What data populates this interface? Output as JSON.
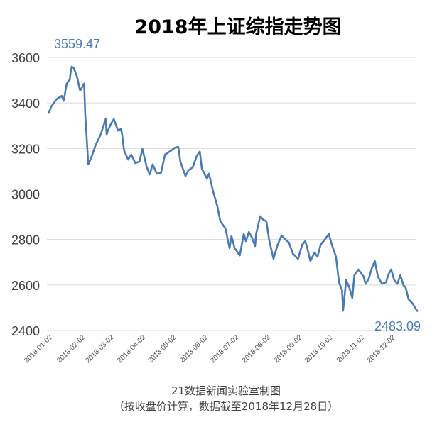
{
  "chart_data": {
    "type": "line",
    "title": "2018年上证综指走势图",
    "xlabel": "",
    "ylabel": "",
    "ylim": [
      2400,
      3600
    ],
    "yticks": [
      2400,
      2600,
      2800,
      3000,
      3200,
      3400,
      3600
    ],
    "grid": true,
    "x_unit": "day of year 2018",
    "xlim": [
      1,
      362
    ],
    "xticks": [
      {
        "day": 1,
        "label": "2018-01-02"
      },
      {
        "day": 33,
        "label": "2018-02-02"
      },
      {
        "day": 61,
        "label": "2018-03-02"
      },
      {
        "day": 92,
        "label": "2018-04-02"
      },
      {
        "day": 122,
        "label": "2018-05-02"
      },
      {
        "day": 153,
        "label": "2018-06-02"
      },
      {
        "day": 183,
        "label": "2018-07-02"
      },
      {
        "day": 214,
        "label": "2018-08-02"
      },
      {
        "day": 245,
        "label": "2018-09-02"
      },
      {
        "day": 275,
        "label": "2018-10-02"
      },
      {
        "day": 306,
        "label": "2018-11-02"
      },
      {
        "day": 336,
        "label": "2018-12-02"
      }
    ],
    "series": [
      {
        "name": "上证综指",
        "color": "#4a7ab5",
        "x": [
          1,
          4,
          9,
          14,
          16,
          19,
          22,
          23,
          24,
          26,
          29,
          32,
          36,
          37,
          40,
          43,
          47,
          52,
          57,
          58,
          59,
          62,
          65,
          69,
          72,
          73,
          75,
          79,
          82,
          86,
          90,
          93,
          97,
          100,
          103,
          107,
          111,
          115,
          121,
          125,
          128,
          130,
          135,
          138,
          142,
          146,
          149,
          151,
          156,
          158,
          162,
          166,
          169,
          174,
          178,
          180,
          183,
          188,
          192,
          194,
          197,
          200,
          203,
          204,
          208,
          211,
          214,
          217,
          221,
          225,
          229,
          232,
          236,
          240,
          245,
          249,
          252,
          254,
          257,
          261,
          264,
          267,
          271,
          275,
          278,
          282,
          285,
          288,
          289,
          292,
          295,
          298,
          300,
          304,
          309,
          311,
          314,
          317,
          320,
          323,
          327,
          331,
          333,
          336,
          339,
          342,
          345,
          348,
          350,
          353,
          357,
          360,
          362
        ],
        "values": [
          3353,
          3385,
          3416,
          3431,
          3410,
          3485,
          3503,
          3541,
          3559.47,
          3553,
          3516,
          3454,
          3485,
          3353,
          3130,
          3160,
          3213,
          3260,
          3329,
          3260,
          3276,
          3307,
          3329,
          3279,
          3285,
          3266,
          3191,
          3151,
          3173,
          3136,
          3142,
          3198,
          3120,
          3086,
          3130,
          3089,
          3092,
          3173,
          3191,
          3204,
          3207,
          3142,
          3079,
          3104,
          3117,
          3167,
          3186,
          3111,
          3067,
          3089,
          3011,
          2949,
          2880,
          2849,
          2762,
          2815,
          2762,
          2730,
          2824,
          2793,
          2833,
          2808,
          2771,
          2824,
          2902,
          2887,
          2880,
          2793,
          2715,
          2777,
          2818,
          2802,
          2787,
          2737,
          2715,
          2777,
          2793,
          2762,
          2705,
          2743,
          2724,
          2777,
          2799,
          2824,
          2777,
          2724,
          2612,
          2576,
          2487,
          2621,
          2590,
          2543,
          2643,
          2668,
          2637,
          2605,
          2627,
          2674,
          2705,
          2637,
          2605,
          2612,
          2643,
          2668,
          2621,
          2605,
          2643,
          2599,
          2590,
          2537,
          2518,
          2495,
          2483.09
        ]
      }
    ],
    "annotations": {
      "max_label": "3559.47",
      "last_label": "2483.09"
    }
  },
  "footer": {
    "source": "21数据新闻实验室制图",
    "note": "（按收盘价计算，数据截至2018年12月28日）"
  }
}
